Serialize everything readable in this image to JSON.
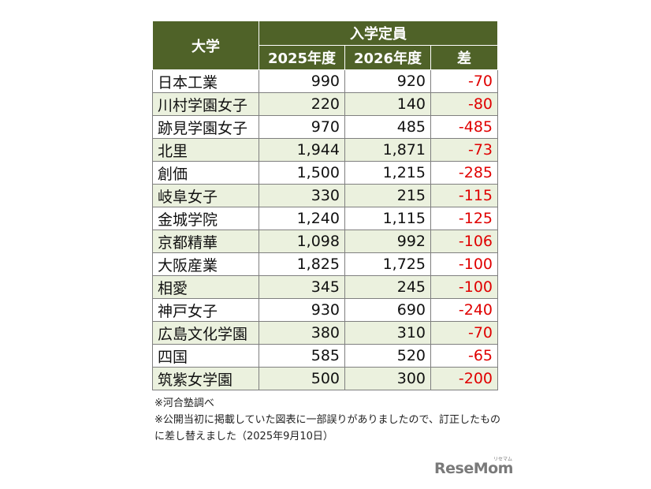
{
  "table": {
    "header_univ": "大学",
    "header_group": "入学定員",
    "header_2025": "2025年度",
    "header_2026": "2026年度",
    "header_diff": "差",
    "rows": [
      {
        "name": "日本工業",
        "y2025": "990",
        "y2026": "920",
        "diff": "-70"
      },
      {
        "name": "川村学園女子",
        "y2025": "220",
        "y2026": "140",
        "diff": "-80"
      },
      {
        "name": "跡見学園女子",
        "y2025": "970",
        "y2026": "485",
        "diff": "-485"
      },
      {
        "name": "北里",
        "y2025": "1,944",
        "y2026": "1,871",
        "diff": "-73"
      },
      {
        "name": "創価",
        "y2025": "1,500",
        "y2026": "1,215",
        "diff": "-285"
      },
      {
        "name": "岐阜女子",
        "y2025": "330",
        "y2026": "215",
        "diff": "-115"
      },
      {
        "name": "金城学院",
        "y2025": "1,240",
        "y2026": "1,115",
        "diff": "-125"
      },
      {
        "name": "京都精華",
        "y2025": "1,098",
        "y2026": "992",
        "diff": "-106"
      },
      {
        "name": "大阪産業",
        "y2025": "1,825",
        "y2026": "1,725",
        "diff": "-100"
      },
      {
        "name": "相愛",
        "y2025": "345",
        "y2026": "245",
        "diff": "-100"
      },
      {
        "name": "神戸女子",
        "y2025": "930",
        "y2026": "690",
        "diff": "-240"
      },
      {
        "name": "広島文化学園",
        "y2025": "380",
        "y2026": "310",
        "diff": "-70"
      },
      {
        "name": "四国",
        "y2025": "585",
        "y2026": "520",
        "diff": "-65"
      },
      {
        "name": "筑紫女学園",
        "y2025": "500",
        "y2026": "300",
        "diff": "-200"
      }
    ]
  },
  "notes": {
    "source": "※河合塾調べ",
    "correction_line1": "※公開当初に掲載していた図表に一部誤りがありましたので、訂正したもの",
    "correction_line2": "に差し替えました（2025年9月10日）"
  },
  "logo": {
    "text": "ReseMom",
    "kana": "リセマム"
  },
  "colors": {
    "header_bg": "#4f6228",
    "alt_row_bg": "#ebf1de",
    "diff_text": "#e00000"
  }
}
